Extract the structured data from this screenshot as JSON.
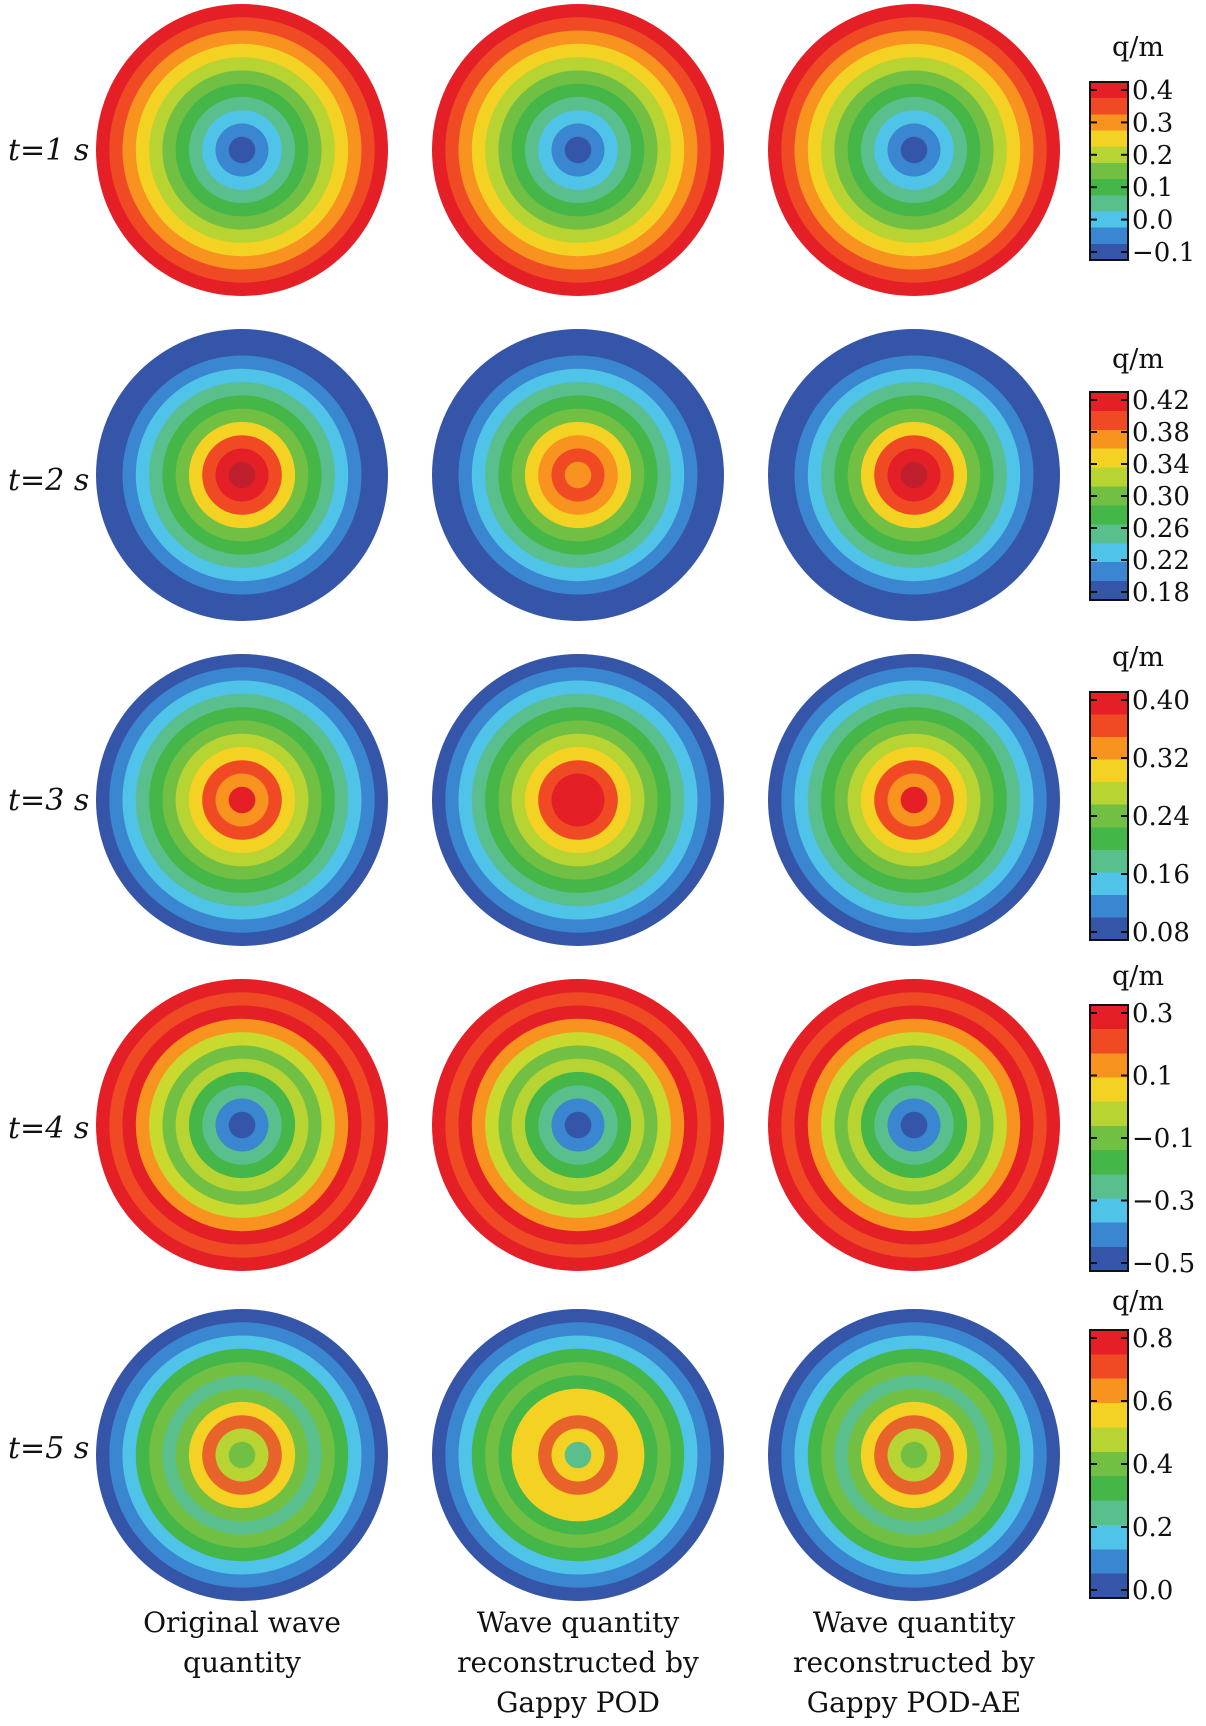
{
  "figure": {
    "rows": [
      {
        "time_label": "t=1 s",
        "unit": "q/m",
        "ticks": [
          "0.4",
          "0.3",
          "0.2",
          "0.1",
          "0.0",
          "−0.1"
        ],
        "stops": [
          "#e41f26",
          "#ef4a24",
          "#f7931e",
          "#f4d223",
          "#b8d432",
          "#72c043",
          "#45b648",
          "#59bf8c",
          "#4fc3e8",
          "#3a86d0",
          "#3455a8"
        ]
      },
      {
        "time_label": "t=2 s",
        "unit": "q/m",
        "ticks": [
          "0.42",
          "0.38",
          "0.34",
          "0.30",
          "0.26",
          "0.22",
          "0.18"
        ],
        "stops": [
          "#e41f26",
          "#ef4a24",
          "#f7931e",
          "#f4d223",
          "#b8d432",
          "#72c043",
          "#45b648",
          "#59bf8c",
          "#4fc3e8",
          "#3a86d0",
          "#3455a8"
        ]
      },
      {
        "time_label": "t=3 s",
        "unit": "q/m",
        "ticks": [
          "0.40",
          "0.32",
          "0.24",
          "0.16",
          "0.08"
        ],
        "stops": [
          "#e41f26",
          "#ef4a24",
          "#f7931e",
          "#f4d223",
          "#b8d432",
          "#72c043",
          "#45b648",
          "#59bf8c",
          "#4fc3e8",
          "#3a86d0",
          "#3455a8"
        ]
      },
      {
        "time_label": "t=4 s",
        "unit": "q/m",
        "ticks": [
          "0.3",
          "0.1",
          "−0.1",
          "−0.3",
          "−0.5"
        ],
        "stops": [
          "#e41f26",
          "#ef4a24",
          "#f7931e",
          "#f4d223",
          "#b8d432",
          "#72c043",
          "#45b648",
          "#59bf8c",
          "#4fc3e8",
          "#3a86d0",
          "#3455a8"
        ]
      },
      {
        "time_label": "t=5 s",
        "unit": "q/m",
        "ticks": [
          "0.8",
          "0.6",
          "0.4",
          "0.2",
          "0.0"
        ],
        "stops": [
          "#e41f26",
          "#ef4a24",
          "#f7931e",
          "#f4d223",
          "#b8d432",
          "#72c043",
          "#45b648",
          "#59bf8c",
          "#4fc3e8",
          "#3a86d0",
          "#3455a8"
        ]
      }
    ],
    "columns": [
      {
        "caption_lines": [
          "Original wave",
          "quantity"
        ]
      },
      {
        "caption_lines": [
          "Wave quantity",
          "reconstructed by",
          "Gappy POD"
        ]
      },
      {
        "caption_lines": [
          "Wave quantity",
          "reconstructed by",
          "Gappy POD-AE"
        ]
      }
    ],
    "disk_rings": [
      {
        "row": 1,
        "col": 1,
        "rings": [
          "#e41f26",
          "#ef4a24",
          "#f7931e",
          "#f4d223",
          "#b8d432",
          "#72c043",
          "#45b648",
          "#59bf8c",
          "#4fc3e8",
          "#3a86d0",
          "#3455a8"
        ]
      },
      {
        "row": 1,
        "col": 2,
        "rings": [
          "#e41f26",
          "#ef4a24",
          "#f7931e",
          "#f4d223",
          "#b8d432",
          "#72c043",
          "#45b648",
          "#59bf8c",
          "#4fc3e8",
          "#3a86d0",
          "#3455a8"
        ]
      },
      {
        "row": 1,
        "col": 3,
        "rings": [
          "#e41f26",
          "#ef4a24",
          "#f7931e",
          "#f4d223",
          "#b8d432",
          "#72c043",
          "#45b648",
          "#59bf8c",
          "#4fc3e8",
          "#3a86d0",
          "#3455a8"
        ]
      },
      {
        "row": 2,
        "col": 1,
        "rings": [
          "#3455a8",
          "#3455a8",
          "#3a86d0",
          "#4fc3e8",
          "#59bf8c",
          "#45b648",
          "#72c043",
          "#f4d223",
          "#ef4a24",
          "#e41f26",
          "#c0202e"
        ]
      },
      {
        "row": 2,
        "col": 2,
        "rings": [
          "#3455a8",
          "#3455a8",
          "#3a86d0",
          "#4fc3e8",
          "#59bf8c",
          "#45b648",
          "#72c043",
          "#f4d223",
          "#f7931e",
          "#ef4a24",
          "#f7931e"
        ]
      },
      {
        "row": 2,
        "col": 3,
        "rings": [
          "#3455a8",
          "#3455a8",
          "#3a86d0",
          "#4fc3e8",
          "#59bf8c",
          "#45b648",
          "#72c043",
          "#f4d223",
          "#ef4a24",
          "#e41f26",
          "#c0202e"
        ]
      },
      {
        "row": 3,
        "col": 1,
        "rings": [
          "#3455a8",
          "#3a86d0",
          "#4fc3e8",
          "#59bf8c",
          "#45b648",
          "#72c043",
          "#b8d432",
          "#f4d223",
          "#ef4a24",
          "#f7931e",
          "#e41f26"
        ]
      },
      {
        "row": 3,
        "col": 2,
        "rings": [
          "#3455a8",
          "#3a86d0",
          "#4fc3e8",
          "#59bf8c",
          "#45b648",
          "#72c043",
          "#b8d432",
          "#f4d223",
          "#ef4a24",
          "#e41f26",
          "#e41f26"
        ]
      },
      {
        "row": 3,
        "col": 3,
        "rings": [
          "#3455a8",
          "#3a86d0",
          "#4fc3e8",
          "#59bf8c",
          "#45b648",
          "#72c043",
          "#b8d432",
          "#f4d223",
          "#ef4a24",
          "#f7931e",
          "#e41f26"
        ]
      },
      {
        "row": 4,
        "col": 1,
        "rings": [
          "#e41f26",
          "#ef4a24",
          "#e41f26",
          "#f7931e",
          "#c9d92e",
          "#72c043",
          "#b8d432",
          "#45b648",
          "#59bf8c",
          "#3a86d0",
          "#3455a8"
        ]
      },
      {
        "row": 4,
        "col": 2,
        "rings": [
          "#e41f26",
          "#ef4a24",
          "#e41f26",
          "#f7931e",
          "#c9d92e",
          "#72c043",
          "#b8d432",
          "#45b648",
          "#59bf8c",
          "#3a86d0",
          "#3455a8"
        ]
      },
      {
        "row": 4,
        "col": 3,
        "rings": [
          "#e41f26",
          "#ef4a24",
          "#e41f26",
          "#f7931e",
          "#c9d92e",
          "#72c043",
          "#b8d432",
          "#45b648",
          "#59bf8c",
          "#3a86d0",
          "#3455a8"
        ]
      },
      {
        "row": 5,
        "col": 1,
        "rings": [
          "#3455a8",
          "#3a86d0",
          "#4fc3e8",
          "#45b648",
          "#72c043",
          "#59bf8c",
          "#72c043",
          "#f4d223",
          "#e8632a",
          "#b8d432",
          "#72c043"
        ]
      },
      {
        "row": 5,
        "col": 2,
        "rings": [
          "#3455a8",
          "#3a86d0",
          "#4fc3e8",
          "#45b648",
          "#72c043",
          "#45b648",
          "#f4d223",
          "#f4d223",
          "#e8632a",
          "#f4d223",
          "#59bf8c"
        ]
      },
      {
        "row": 5,
        "col": 3,
        "rings": [
          "#3455a8",
          "#3a86d0",
          "#4fc3e8",
          "#45b648",
          "#72c043",
          "#59bf8c",
          "#72c043",
          "#f4d223",
          "#e8632a",
          "#b8d432",
          "#72c043"
        ]
      }
    ]
  }
}
